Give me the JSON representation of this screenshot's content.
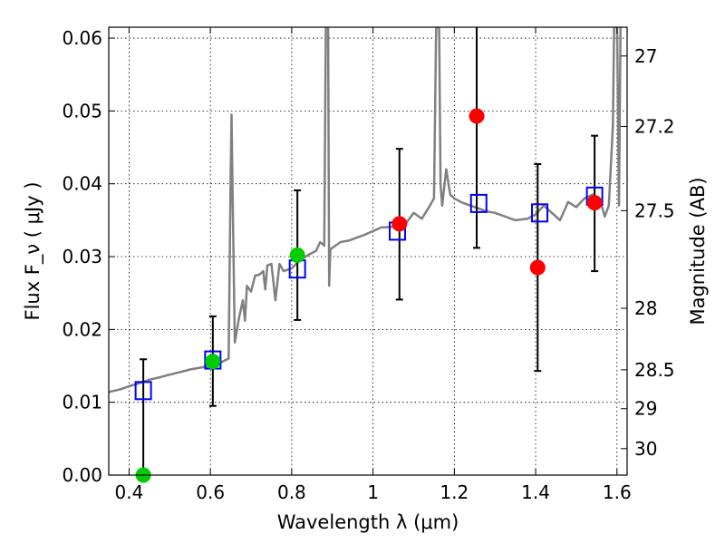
{
  "chart_data": {
    "type": "scatter",
    "xlabel": "Wavelength  λ (μm)",
    "ylabel_left": "Flux  F_ν  ( μJy )",
    "ylabel_right": "Magnitude (AB)",
    "xlim": [
      0.35,
      1.625
    ],
    "ylim": [
      0.0,
      0.0615
    ],
    "x_ticks": [
      0.4,
      0.6,
      0.8,
      1.0,
      1.2,
      1.4,
      1.6
    ],
    "x_tick_labels": [
      "0.4",
      "0.6",
      "0.8",
      "1",
      "1.2",
      "1.4",
      "1.6"
    ],
    "y_ticks": [
      0.0,
      0.01,
      0.02,
      0.03,
      0.04,
      0.05,
      0.06
    ],
    "y_tick_labels": [
      "0.00",
      "0.01",
      "0.02",
      "0.03",
      "0.04",
      "0.05",
      "0.06"
    ],
    "right_ticks": [
      27,
      27.2,
      27.5,
      28,
      28.5,
      29,
      30
    ],
    "right_tick_labels": [
      "27",
      "27.2",
      "27.5",
      "28",
      "28.5",
      "29",
      "30"
    ],
    "grid": true,
    "model_spectrum": {
      "color": "#808080",
      "x": [
        0.35,
        0.38,
        0.4,
        0.43,
        0.45,
        0.48,
        0.5,
        0.53,
        0.55,
        0.58,
        0.6,
        0.62,
        0.63,
        0.645,
        0.65,
        0.652,
        0.654,
        0.66,
        0.665,
        0.67,
        0.68,
        0.685,
        0.69,
        0.7,
        0.71,
        0.72,
        0.73,
        0.735,
        0.74,
        0.75,
        0.76,
        0.77,
        0.78,
        0.8,
        0.82,
        0.84,
        0.86,
        0.87,
        0.88,
        0.885,
        0.889,
        0.892,
        0.895,
        0.9,
        0.92,
        0.94,
        0.96,
        0.98,
        1.0,
        1.02,
        1.05,
        1.08,
        1.1,
        1.12,
        1.14,
        1.15,
        1.155,
        1.16,
        1.163,
        1.166,
        1.17,
        1.18,
        1.19,
        1.2,
        1.22,
        1.24,
        1.26,
        1.28,
        1.3,
        1.32,
        1.35,
        1.38,
        1.4,
        1.42,
        1.44,
        1.46,
        1.48,
        1.5,
        1.52,
        1.54,
        1.56,
        1.57,
        1.58,
        1.59,
        1.595,
        1.6,
        1.605,
        1.61,
        1.615,
        1.625
      ],
      "y": [
        0.0114,
        0.0118,
        0.0122,
        0.0127,
        0.0131,
        0.0135,
        0.0138,
        0.0142,
        0.0145,
        0.0148,
        0.015,
        0.0152,
        0.0156,
        0.016,
        0.042,
        0.0495,
        0.041,
        0.0182,
        0.0198,
        0.0215,
        0.024,
        0.0212,
        0.026,
        0.0252,
        0.0274,
        0.0275,
        0.028,
        0.0255,
        0.0288,
        0.029,
        0.024,
        0.029,
        0.028,
        0.0284,
        0.0295,
        0.0302,
        0.0308,
        0.032,
        0.0315,
        0.07,
        0.07,
        0.026,
        0.031,
        0.0312,
        0.032,
        0.0322,
        0.0326,
        0.033,
        0.0335,
        0.034,
        0.0341,
        0.0345,
        0.036,
        0.0352,
        0.037,
        0.038,
        0.06,
        0.07,
        0.06,
        0.04,
        0.037,
        0.042,
        0.0385,
        0.038,
        0.0374,
        0.037,
        0.0366,
        0.0362,
        0.036,
        0.0356,
        0.035,
        0.0352,
        0.0358,
        0.037,
        0.036,
        0.035,
        0.0375,
        0.0368,
        0.038,
        0.0385,
        0.0375,
        0.0355,
        0.037,
        0.048,
        0.07,
        0.064,
        0.037,
        0.07,
        0.062,
        0.07
      ]
    },
    "series": [
      {
        "marker": "square-open",
        "color": "#0000ff",
        "x": [
          0.435,
          0.606,
          0.814,
          1.06,
          1.26,
          1.41,
          1.545
        ],
        "y": [
          0.0116,
          0.0158,
          0.0283,
          0.0335,
          0.0373,
          0.036,
          0.0383
        ]
      },
      {
        "marker": "circle-filled",
        "color": "#00cc00",
        "x": [
          0.435,
          0.606,
          0.814
        ],
        "y": [
          0.0,
          0.0156,
          0.0302
        ]
      },
      {
        "marker": "circle-filled",
        "color": "#ff0000",
        "x": [
          1.065,
          1.255,
          1.405,
          1.545
        ],
        "y": [
          0.0345,
          0.0493,
          0.0285,
          0.0374
        ]
      }
    ],
    "error_bars": [
      {
        "x": 0.435,
        "low": 0.0,
        "high": 0.0159
      },
      {
        "x": 0.606,
        "low": 0.0095,
        "high": 0.0218
      },
      {
        "x": 0.814,
        "low": 0.0213,
        "high": 0.0391
      },
      {
        "x": 1.065,
        "low": 0.0241,
        "high": 0.0448
      },
      {
        "x": 1.255,
        "low": 0.0312,
        "high": 0.07
      },
      {
        "x": 1.405,
        "low": 0.0143,
        "high": 0.0427
      },
      {
        "x": 1.545,
        "low": 0.028,
        "high": 0.0466
      }
    ]
  }
}
